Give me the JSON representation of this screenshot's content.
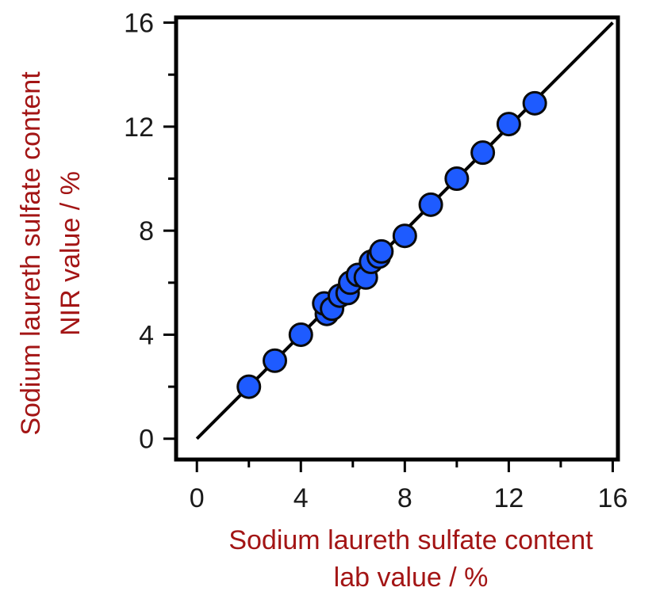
{
  "chart_data": {
    "type": "scatter",
    "xlabel_lines": [
      "Sodium laureth sulfate content",
      "lab value / %"
    ],
    "ylabel_lines": [
      "Sodium laureth sulfate content",
      "NIR value / %"
    ],
    "xlim": [
      -0.8,
      16.2
    ],
    "ylim": [
      -0.8,
      16.2
    ],
    "x_ticks": [
      0,
      4,
      8,
      12,
      16
    ],
    "y_ticks": [
      0,
      4,
      8,
      12,
      16
    ],
    "grid": false,
    "legend": "none",
    "reference_line": {
      "x": [
        0,
        16
      ],
      "y": [
        0,
        16
      ]
    },
    "points": [
      {
        "x": 2.0,
        "y": 2.0
      },
      {
        "x": 3.0,
        "y": 3.0
      },
      {
        "x": 4.0,
        "y": 4.0
      },
      {
        "x": 5.0,
        "y": 4.8
      },
      {
        "x": 4.9,
        "y": 5.2
      },
      {
        "x": 5.2,
        "y": 5.0
      },
      {
        "x": 5.5,
        "y": 5.5
      },
      {
        "x": 5.8,
        "y": 5.6
      },
      {
        "x": 5.9,
        "y": 6.0
      },
      {
        "x": 6.2,
        "y": 6.3
      },
      {
        "x": 6.5,
        "y": 6.2
      },
      {
        "x": 6.7,
        "y": 6.8
      },
      {
        "x": 7.0,
        "y": 7.0
      },
      {
        "x": 7.1,
        "y": 7.2
      },
      {
        "x": 8.0,
        "y": 7.8
      },
      {
        "x": 9.0,
        "y": 9.0
      },
      {
        "x": 10.0,
        "y": 10.0
      },
      {
        "x": 11.0,
        "y": 11.0
      },
      {
        "x": 12.0,
        "y": 12.1
      },
      {
        "x": 13.0,
        "y": 12.9
      }
    ],
    "marker_color": "#1e5bff",
    "marker_edge_color": "#0a0a0a",
    "axis_label_color": "#a31515"
  }
}
